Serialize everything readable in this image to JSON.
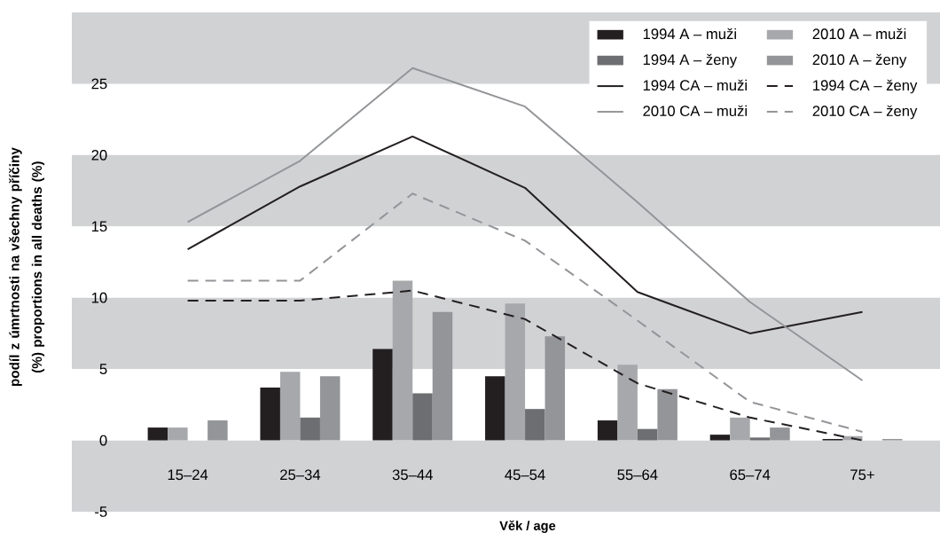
{
  "chart_data": {
    "type": "bar",
    "xlabel": "Věk / age",
    "ylabel": "podíl z úmrtnosti na všechny příčiny (%) proportions in all deaths (%)",
    "categories": [
      "15–24",
      "25–34",
      "35–44",
      "45–54",
      "55–64",
      "65–74",
      "75+"
    ],
    "series": [
      {
        "name": "1994 A – muži",
        "color": "#231f20",
        "values": [
          0.9,
          3.7,
          6.4,
          4.5,
          1.4,
          0.4,
          0.1
        ]
      },
      {
        "name": "2010 A – muži",
        "color": "#a7a8ab",
        "values": [
          0.9,
          4.8,
          11.2,
          9.6,
          5.3,
          1.6,
          0.3
        ]
      },
      {
        "name": "1994 A – ženy",
        "color": "#6d6e71",
        "values": [
          null,
          1.6,
          3.3,
          2.2,
          0.8,
          0.2,
          null
        ]
      },
      {
        "name": "2010 A – ženy",
        "color": "#939598",
        "values": [
          1.4,
          4.5,
          9.0,
          7.3,
          3.6,
          0.9,
          0.1
        ]
      },
      {
        "name": "1994 CA – muži",
        "type": "line",
        "line_style": "solid",
        "color": "#231f20",
        "values": [
          13.4,
          17.8,
          21.3,
          17.7,
          10.4,
          7.5,
          9.0
        ]
      },
      {
        "name": "1994 CA – ženy",
        "type": "line",
        "line_style": "dashed",
        "color": "#231f20",
        "values": [
          9.8,
          9.8,
          10.5,
          8.5,
          4.0,
          1.6,
          0
        ]
      },
      {
        "name": "2010 CA – muži",
        "type": "line",
        "line_style": "solid",
        "color": "#939598",
        "values": [
          15.3,
          19.6,
          26.1,
          23.4,
          16.7,
          9.7,
          4.2
        ]
      },
      {
        "name": "2010 CA – ženy",
        "type": "line",
        "line_style": "dashed",
        "color": "#939598",
        "values": [
          11.2,
          11.2,
          17.3,
          14.0,
          8.4,
          2.7,
          0.6
        ]
      }
    ],
    "ylim": [
      -5,
      30
    ],
    "yticks": [
      -5,
      0,
      5,
      10,
      15,
      20,
      25
    ],
    "bands": [
      {
        "axis": "y",
        "from": -5,
        "to": 0,
        "color": "#d1d2d4"
      },
      {
        "axis": "y",
        "from": 5,
        "to": 10,
        "color": "#d1d2d4"
      },
      {
        "axis": "y",
        "from": 15,
        "to": 20,
        "color": "#d1d2d4"
      },
      {
        "axis": "y",
        "from": 25,
        "to": 30,
        "color": "#d1d2d4"
      }
    ],
    "grid": false,
    "legend": "top right",
    "marker": "none"
  }
}
